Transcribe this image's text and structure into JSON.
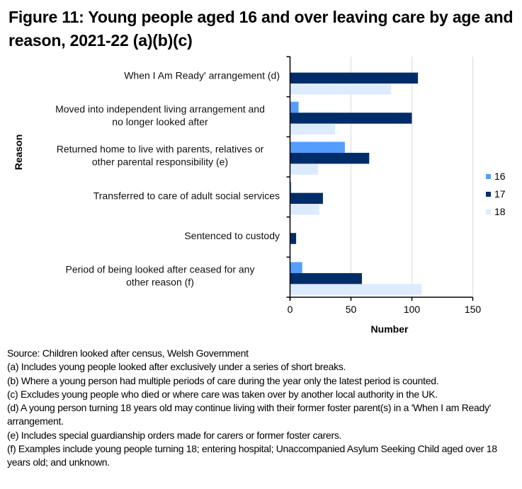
{
  "title": "Figure 11: Young people aged 16 and over leaving care by age and reason, 2021-22 (a)(b)(c)",
  "chart_data": {
    "type": "bar",
    "orientation": "horizontal",
    "title": "Figure 11: Young people aged 16 and over leaving care by age and reason, 2021-22 (a)(b)(c)",
    "xlabel": "Number",
    "ylabel": "Reason",
    "xlim": [
      0,
      150
    ],
    "xticks": [
      0,
      50,
      100,
      150
    ],
    "grid": "vertical",
    "legend_position": "right",
    "categories": [
      [
        "When I Am Ready' arrangement (d)"
      ],
      [
        "Moved into independent living arrangement and",
        "no longer looked after"
      ],
      [
        "Returned home to live with parents, relatives or",
        "other parental responsibility (e)"
      ],
      [
        "Transferred to care of adult social services"
      ],
      [
        "Sentenced to custody"
      ],
      [
        "Period of being looked after ceased for any",
        "other reason (f)"
      ]
    ],
    "series": [
      {
        "name": "16",
        "color": "#559dff",
        "values": [
          0,
          7,
          45,
          1,
          0,
          10
        ]
      },
      {
        "name": "17",
        "color": "#002d6a",
        "values": [
          105,
          100,
          65,
          27,
          5,
          59
        ]
      },
      {
        "name": "18",
        "color": "#ddebff",
        "values": [
          83,
          37,
          23,
          24,
          0,
          108
        ]
      }
    ]
  },
  "footnotes": {
    "source": "Source: Children looked after census, Welsh Government",
    "a": "(a) Includes young people looked after exclusively under a series of short breaks.",
    "b": "(b) Where a young person had multiple periods of care during the year only the latest period is counted.",
    "c": "(c) Excludes young people who died or where care was taken over by another local authority in the UK.",
    "d": "(d) A young person turning 18 years old may continue living with their former foster parent(s) in a 'When I am Ready' arrangement.",
    "e": "(e) Includes special guardianship orders made for carers or former foster carers.",
    "f": "(f) Examples include young people turning 18; entering hospital; Unaccompanied Asylum Seeking Child aged over 18 years old; and unknown."
  }
}
